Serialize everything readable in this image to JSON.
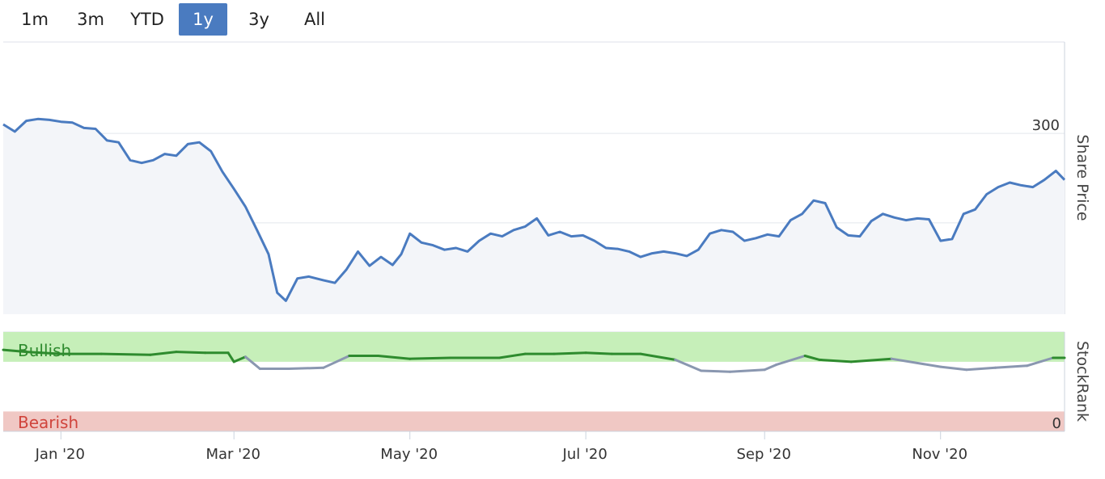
{
  "range_selector": {
    "buttons": [
      {
        "label": "1m",
        "active": false
      },
      {
        "label": "3m",
        "active": false
      },
      {
        "label": "YTD",
        "active": false
      },
      {
        "label": "1y",
        "active": true
      },
      {
        "label": "3y",
        "active": false
      },
      {
        "label": "All",
        "active": false
      }
    ]
  },
  "colors": {
    "price_line": "#4a7bc0",
    "price_area": "#f3f5f9",
    "stockrank_bullish_line": "#2e8b2e",
    "stockrank_neutral_line": "#8a97b0",
    "bullish_band": "#c6efb9",
    "bearish_band": "#f0c8c4",
    "bullish_text": "#2e8b2e",
    "bearish_text": "#d0443c",
    "active_button": "#4a7bc0"
  },
  "chart_data": [
    {
      "type": "area",
      "ylabel": "Share Price",
      "ylim": [
        98,
        402
      ],
      "yticks": [
        100,
        200,
        300
      ],
      "xlim": [
        "2019-12-12",
        "2020-12-14"
      ],
      "xticks": [
        {
          "date": "2020-01-01",
          "label": "Jan '20"
        },
        {
          "date": "2020-03-01",
          "label": "Mar '20"
        },
        {
          "date": "2020-05-01",
          "label": "May '20"
        },
        {
          "date": "2020-07-01",
          "label": "Jul '20"
        },
        {
          "date": "2020-09-01",
          "label": "Sep '20"
        },
        {
          "date": "2020-11-01",
          "label": "Nov '20"
        }
      ],
      "grid": true,
      "series": [
        {
          "x": [
            "2019-12-12",
            "2019-12-16",
            "2019-12-20",
            "2019-12-24",
            "2019-12-28",
            "2020-01-01",
            "2020-01-05",
            "2020-01-09",
            "2020-01-13",
            "2020-01-17",
            "2020-01-21",
            "2020-01-25",
            "2020-01-29",
            "2020-02-02",
            "2020-02-06",
            "2020-02-10",
            "2020-02-14",
            "2020-02-18",
            "2020-02-22",
            "2020-02-26",
            "2020-03-01",
            "2020-03-05",
            "2020-03-09",
            "2020-03-13",
            "2020-03-16",
            "2020-03-19",
            "2020-03-23",
            "2020-03-27",
            "2020-04-01",
            "2020-04-05",
            "2020-04-09",
            "2020-04-13",
            "2020-04-17",
            "2020-04-21",
            "2020-04-25",
            "2020-04-28",
            "2020-05-01",
            "2020-05-05",
            "2020-05-09",
            "2020-05-13",
            "2020-05-17",
            "2020-05-21",
            "2020-05-25",
            "2020-05-29",
            "2020-06-02",
            "2020-06-06",
            "2020-06-10",
            "2020-06-14",
            "2020-06-18",
            "2020-06-22",
            "2020-06-26",
            "2020-06-30",
            "2020-07-04",
            "2020-07-08",
            "2020-07-12",
            "2020-07-16",
            "2020-07-20",
            "2020-07-24",
            "2020-07-28",
            "2020-08-01",
            "2020-08-05",
            "2020-08-09",
            "2020-08-13",
            "2020-08-17",
            "2020-08-21",
            "2020-08-25",
            "2020-08-29",
            "2020-09-02",
            "2020-09-06",
            "2020-09-10",
            "2020-09-14",
            "2020-09-18",
            "2020-09-22",
            "2020-09-26",
            "2020-09-30",
            "2020-10-04",
            "2020-10-08",
            "2020-10-12",
            "2020-10-16",
            "2020-10-20",
            "2020-10-24",
            "2020-10-28",
            "2020-11-01",
            "2020-11-05",
            "2020-11-09",
            "2020-11-13",
            "2020-11-17",
            "2020-11-21",
            "2020-11-25",
            "2020-11-29",
            "2020-12-03",
            "2020-12-07",
            "2020-12-11",
            "2020-12-14"
          ],
          "values": [
            310,
            302,
            314,
            316,
            315,
            313,
            312,
            306,
            305,
            292,
            290,
            270,
            267,
            270,
            277,
            275,
            288,
            290,
            280,
            257,
            238,
            218,
            192,
            165,
            122,
            113,
            138,
            140,
            136,
            133,
            148,
            168,
            152,
            162,
            153,
            165,
            188,
            178,
            175,
            170,
            172,
            168,
            180,
            188,
            185,
            192,
            196,
            205,
            186,
            190,
            185,
            186,
            180,
            172,
            171,
            168,
            162,
            166,
            168,
            166,
            163,
            170,
            188,
            192,
            190,
            180,
            183,
            187,
            185,
            203,
            210,
            225,
            222,
            195,
            186,
            185,
            202,
            210,
            206,
            203,
            205,
            204,
            180,
            182,
            210,
            215,
            232,
            240,
            245,
            242,
            240,
            248,
            258,
            248
          ]
        }
      ]
    },
    {
      "type": "line",
      "ylabel": "StockRank",
      "ylim": [
        0,
        100
      ],
      "yticks": [
        0
      ],
      "bands": [
        {
          "label": "Bullish",
          "from": 70,
          "to": 100
        },
        {
          "label": "Bearish",
          "from": 0,
          "to": 20
        }
      ],
      "series": [
        {
          "x": [
            "2019-12-12",
            "2019-12-20",
            "2020-01-01",
            "2020-01-15",
            "2020-02-01",
            "2020-02-10",
            "2020-02-20",
            "2020-02-28",
            "2020-03-01",
            "2020-03-05",
            "2020-03-10",
            "2020-03-20",
            "2020-04-01",
            "2020-04-10",
            "2020-04-20",
            "2020-05-01",
            "2020-05-15",
            "2020-06-01",
            "2020-06-10",
            "2020-06-20",
            "2020-07-01",
            "2020-07-10",
            "2020-07-20",
            "2020-08-01",
            "2020-08-10",
            "2020-08-20",
            "2020-09-01",
            "2020-09-05",
            "2020-09-15",
            "2020-09-20",
            "2020-10-01",
            "2020-10-15",
            "2020-11-01",
            "2020-11-10",
            "2020-11-20",
            "2020-12-01",
            "2020-12-10",
            "2020-12-14"
          ],
          "values": [
            82,
            80,
            78,
            78,
            77,
            80,
            79,
            79,
            70,
            75,
            63,
            63,
            64,
            76,
            76,
            73,
            74,
            74,
            78,
            78,
            79,
            78,
            78,
            72,
            61,
            60,
            62,
            67,
            76,
            72,
            70,
            73,
            65,
            62,
            64,
            66,
            74,
            74
          ]
        }
      ]
    }
  ]
}
